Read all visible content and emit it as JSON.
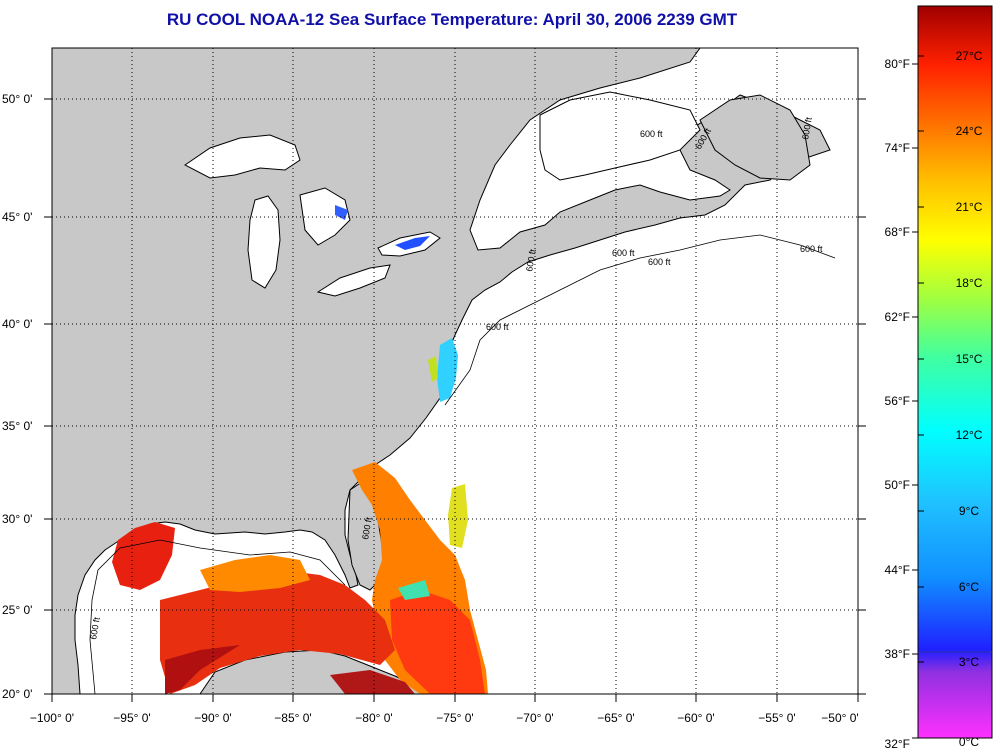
{
  "title": "RU COOL  NOAA-12  Sea Surface Temperature:  April 30, 2006 2239 GMT",
  "map": {
    "lat_labels": [
      "20° 0'",
      "25° 0'",
      "30° 0'",
      "35° 0'",
      "40° 0'",
      "45° 0'",
      "50° 0'"
    ],
    "lon_labels": [
      "−100° 0'",
      "−95° 0'",
      "−90° 0'",
      "−85° 0'",
      "−80° 0'",
      "−75° 0'",
      "−70° 0'",
      "−65° 0'",
      "−60° 0'",
      "−55° 0'",
      "−50° 0'"
    ],
    "isobath_label": "600 ft",
    "colors": {
      "land": "#c8c8c8",
      "ocean": "#ffffff",
      "coast": "#000000"
    }
  },
  "colorbar": {
    "fahrenheit_labels": [
      "80°F",
      "74°F",
      "68°F",
      "62°F",
      "56°F",
      "50°F",
      "44°F",
      "38°F",
      "32°F"
    ],
    "celsius_labels": [
      "27°C",
      "24°C",
      "21°C",
      "18°C",
      "15°C",
      "12°C",
      "9°C",
      "6°C",
      "3°C",
      "0°C"
    ]
  }
}
